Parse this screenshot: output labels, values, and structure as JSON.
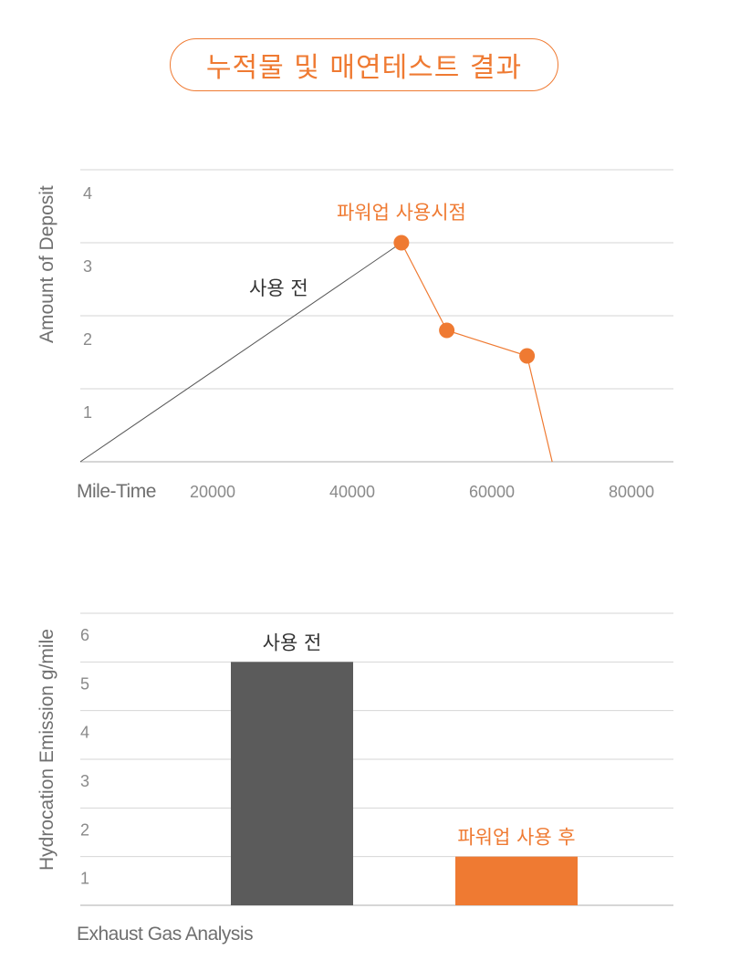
{
  "page": {
    "title": "누적물 및 매연테스트 결과"
  },
  "colors": {
    "accent": "#ef7a32",
    "dark": "#5b5b5b",
    "grid": "#d6d6d6",
    "line": "#555555"
  },
  "chart_data": [
    {
      "type": "line",
      "title": "",
      "xlabel": "Mile-Time",
      "ylabel": "Amount of Deposit",
      "xlim": [
        0,
        80000
      ],
      "ylim": [
        0,
        4
      ],
      "x_ticks": [
        "20000",
        "40000",
        "60000",
        "80000"
      ],
      "x_tick_values": [
        20000,
        40000,
        60000,
        80000
      ],
      "y_ticks": [
        "1",
        "2",
        "3",
        "4"
      ],
      "y_tick_values": [
        1,
        2,
        3,
        4
      ],
      "grid": true,
      "series": [
        {
          "name": "사용 전",
          "color": "#555555",
          "points": [
            [
              0,
              0
            ],
            [
              46000,
              3
            ]
          ]
        },
        {
          "name": "파워업 사용시점",
          "color": "#ef7a32",
          "markers": true,
          "points": [
            [
              46000,
              3
            ],
            [
              52500,
              1.8
            ],
            [
              64000,
              1.45
            ],
            [
              67600,
              0
            ]
          ]
        }
      ],
      "annotations": [
        {
          "text": "사용 전",
          "series": 0
        },
        {
          "text": "파워업 사용시점",
          "series": 1
        }
      ]
    },
    {
      "type": "bar",
      "title": "",
      "xlabel": "Exhaust Gas Analysis",
      "ylabel": "Hydrocation Emission g/mile",
      "ylim": [
        0,
        6
      ],
      "y_ticks": [
        "1",
        "2",
        "3",
        "4",
        "5",
        "6"
      ],
      "y_tick_values": [
        1,
        2,
        3,
        4,
        5,
        6
      ],
      "grid": true,
      "bars": [
        {
          "label": "사용 전",
          "value": 5,
          "color": "#5b5b5b",
          "label_color": "#333333"
        },
        {
          "label": "파워업 사용 후",
          "value": 1,
          "color": "#ef7a32",
          "label_color": "#ef7a32"
        }
      ]
    }
  ]
}
